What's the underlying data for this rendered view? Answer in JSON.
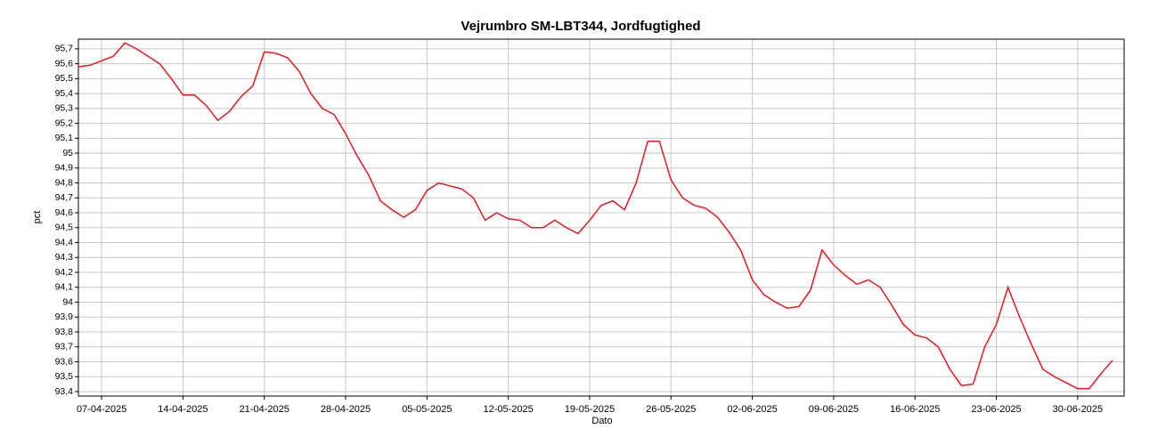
{
  "chart_data": {
    "type": "line",
    "title": "Vejrumbro SM-LBT344, Jordfugtighed",
    "xlabel": "Dato",
    "ylabel": "pct",
    "x": [
      "05-04-2025",
      "06-04-2025",
      "07-04-2025",
      "08-04-2025",
      "09-04-2025",
      "10-04-2025",
      "11-04-2025",
      "12-04-2025",
      "13-04-2025",
      "14-04-2025",
      "15-04-2025",
      "16-04-2025",
      "17-04-2025",
      "18-04-2025",
      "19-04-2025",
      "20-04-2025",
      "21-04-2025",
      "22-04-2025",
      "23-04-2025",
      "24-04-2025",
      "25-04-2025",
      "26-04-2025",
      "27-04-2025",
      "28-04-2025",
      "29-04-2025",
      "30-04-2025",
      "01-05-2025",
      "02-05-2025",
      "03-05-2025",
      "04-05-2025",
      "05-05-2025",
      "06-05-2025",
      "07-05-2025",
      "08-05-2025",
      "09-05-2025",
      "10-05-2025",
      "11-05-2025",
      "12-05-2025",
      "13-05-2025",
      "14-05-2025",
      "15-05-2025",
      "16-05-2025",
      "17-05-2025",
      "18-05-2025",
      "19-05-2025",
      "20-05-2025",
      "21-05-2025",
      "22-05-2025",
      "23-05-2025",
      "24-05-2025",
      "25-05-2025",
      "26-05-2025",
      "27-05-2025",
      "28-05-2025",
      "29-05-2025",
      "30-05-2025",
      "31-05-2025",
      "01-06-2025",
      "02-06-2025",
      "03-06-2025",
      "04-06-2025",
      "05-06-2025",
      "06-06-2025",
      "07-06-2025",
      "08-06-2025",
      "09-06-2025",
      "10-06-2025",
      "11-06-2025",
      "12-06-2025",
      "13-06-2025",
      "14-06-2025",
      "15-06-2025",
      "16-06-2025",
      "17-06-2025",
      "18-06-2025",
      "19-06-2025",
      "20-06-2025",
      "21-06-2025",
      "22-06-2025",
      "23-06-2025",
      "24-06-2025",
      "25-06-2025",
      "26-06-2025",
      "27-06-2025",
      "28-06-2025",
      "29-06-2025",
      "30-06-2025",
      "01-07-2025",
      "02-07-2025",
      "03-07-2025"
    ],
    "series": [
      {
        "name": "Jordfugtighed",
        "color": "#e8191e",
        "values": [
          95.58,
          95.59,
          95.62,
          95.65,
          95.74,
          95.7,
          95.65,
          95.6,
          95.5,
          95.39,
          95.39,
          95.32,
          95.22,
          95.28,
          95.38,
          95.45,
          95.68,
          95.67,
          95.64,
          95.55,
          95.4,
          95.3,
          95.26,
          95.13,
          94.98,
          94.85,
          94.68,
          94.62,
          94.57,
          94.62,
          94.75,
          94.8,
          94.78,
          94.76,
          94.7,
          94.55,
          94.6,
          94.56,
          94.55,
          94.5,
          94.5,
          94.55,
          94.5,
          94.46,
          94.55,
          94.65,
          94.68,
          94.62,
          94.8,
          95.08,
          95.08,
          94.82,
          94.7,
          94.65,
          94.63,
          94.57,
          94.47,
          94.35,
          94.15,
          94.05,
          94.0,
          93.96,
          93.97,
          94.08,
          94.35,
          94.25,
          94.18,
          94.12,
          94.15,
          94.1,
          93.98,
          93.85,
          93.78,
          93.76,
          93.7,
          93.55,
          93.44,
          93.45,
          93.7,
          93.85,
          94.1,
          93.9,
          93.72,
          93.55,
          93.5,
          93.46,
          93.42,
          93.42,
          93.52,
          93.61
        ]
      }
    ],
    "xlim": [
      "05-04-2025",
      "04-07-2025"
    ],
    "xticks": [
      "07-04-2025",
      "14-04-2025",
      "21-04-2025",
      "28-04-2025",
      "05-05-2025",
      "12-05-2025",
      "19-05-2025",
      "26-05-2025",
      "02-06-2025",
      "09-06-2025",
      "16-06-2025",
      "23-06-2025",
      "30-06-2025"
    ],
    "ylim": [
      93.37,
      95.765
    ],
    "yticks": [
      {
        "value": 93.4,
        "label": "93,4"
      },
      {
        "value": 93.5,
        "label": "93,5"
      },
      {
        "value": 93.6,
        "label": "93,6"
      },
      {
        "value": 93.7,
        "label": "93,7"
      },
      {
        "value": 93.8,
        "label": "93,8"
      },
      {
        "value": 93.9,
        "label": "93,9"
      },
      94,
      {
        "value": 94.1,
        "label": "94,1"
      },
      {
        "value": 94.2,
        "label": "94,2"
      },
      {
        "value": 94.3,
        "label": "94,3"
      },
      {
        "value": 94.4,
        "label": "94,4"
      },
      {
        "value": 94.5,
        "label": "94,5"
      },
      {
        "value": 94.6,
        "label": "94,6"
      },
      {
        "value": 94.7,
        "label": "94,7"
      },
      {
        "value": 94.8,
        "label": "94,8"
      },
      {
        "value": 94.9,
        "label": "94,9"
      },
      95,
      {
        "value": 95.1,
        "label": "95,1"
      },
      {
        "value": 95.2,
        "label": "95,2"
      },
      {
        "value": 95.3,
        "label": "95,3"
      },
      {
        "value": 95.4,
        "label": "95,4"
      },
      {
        "value": 95.5,
        "label": "95,5"
      },
      {
        "value": 95.6,
        "label": "95,6"
      },
      {
        "value": 95.7,
        "label": "95,7"
      }
    ],
    "grid": true
  }
}
